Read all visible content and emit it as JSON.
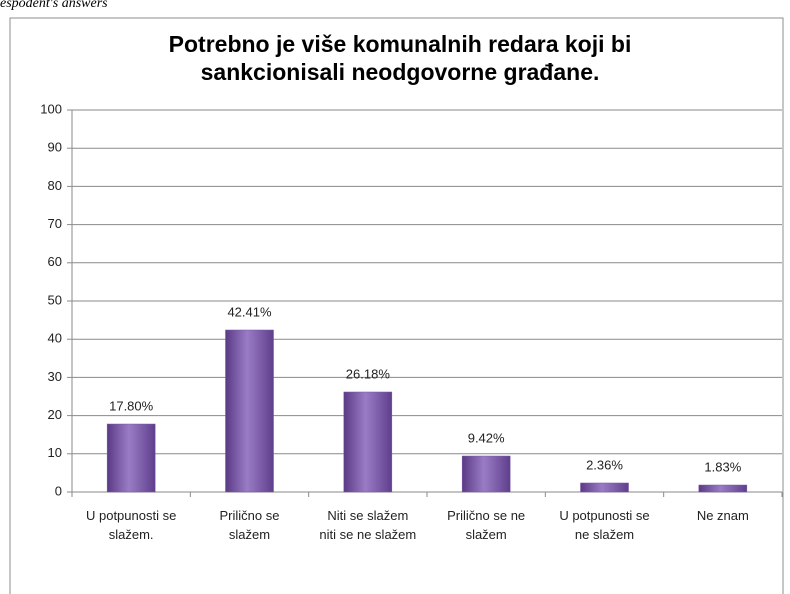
{
  "caption": "espodent's answers",
  "chart_data": {
    "type": "bar",
    "title": "Potrebno je više komunalnih redara koji bi sankcionisali neodgovorne građane.",
    "categories": [
      "U potpunosti se slažem.",
      "Prilično se slažem",
      "Niti se slažem niti se ne slažem",
      "Prilično se ne slažem",
      "U potpunosti se ne slažem",
      "Ne znam"
    ],
    "values": [
      17.8,
      42.41,
      26.18,
      9.42,
      2.36,
      1.83
    ],
    "value_labels": [
      "17.80%",
      "42.41%",
      "26.18%",
      "9.42%",
      "2.36%",
      "1.83%"
    ],
    "color": "#7b55a8",
    "ylim": [
      0,
      100
    ],
    "yticks": [
      0,
      10,
      20,
      30,
      40,
      50,
      60,
      70,
      80,
      90,
      100
    ],
    "grid": true
  }
}
